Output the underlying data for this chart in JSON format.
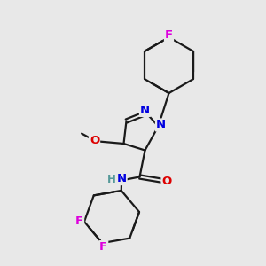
{
  "background_color": "#e8e8e8",
  "bond_color": "#1a1a1a",
  "atom_colors": {
    "N": "#0000e0",
    "O": "#dd0000",
    "F": "#dd00dd",
    "C": "#1a1a1a",
    "H": "#559999"
  },
  "figsize": [
    3.0,
    3.0
  ],
  "dpi": 100,
  "xlim": [
    0,
    10
  ],
  "ylim": [
    0,
    10
  ]
}
